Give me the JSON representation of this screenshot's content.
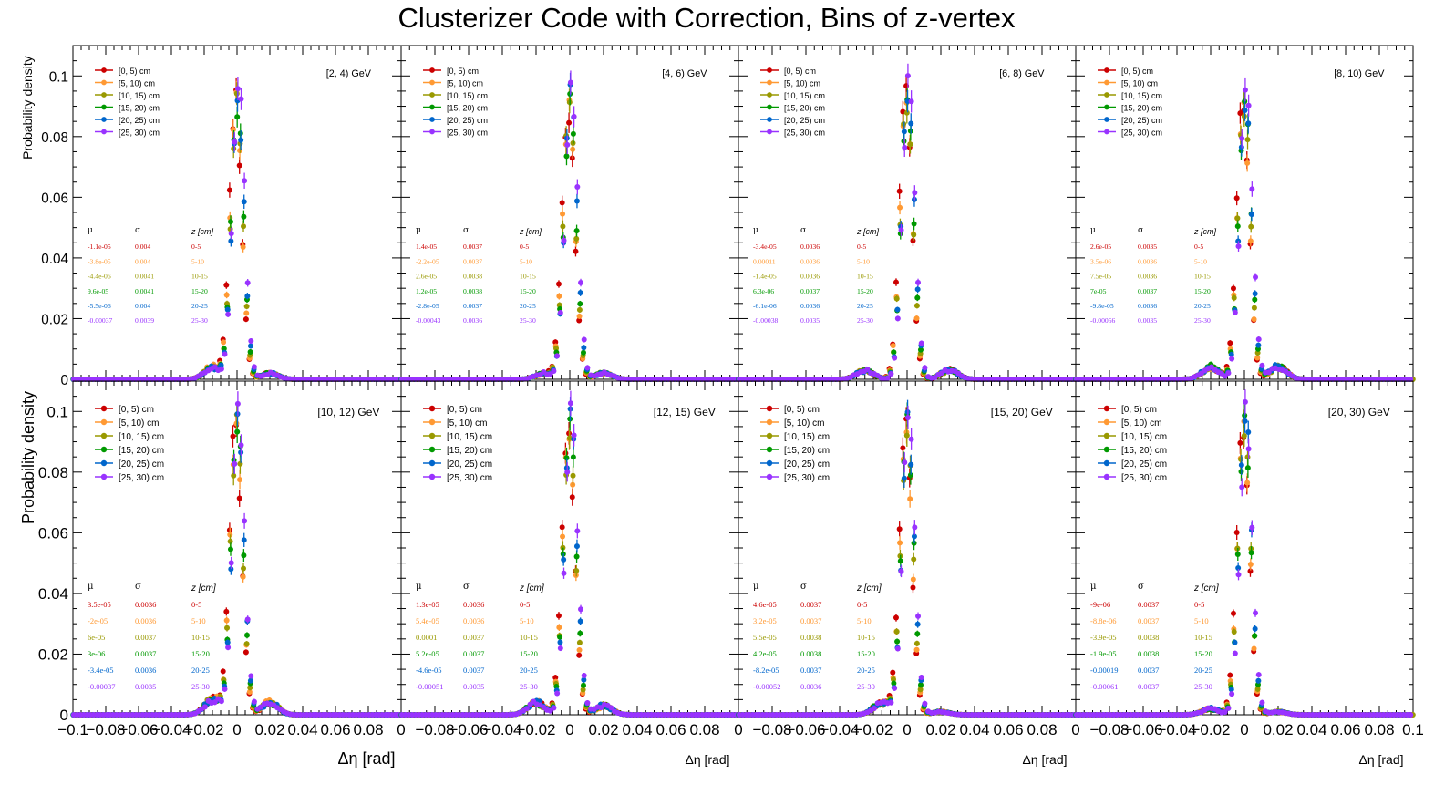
{
  "figure": {
    "title": "Clusterizer Code with Correction, Bins of z-vertex",
    "ylabel": "Probability density",
    "xlabel": "Δη  [rad]"
  },
  "stats_headers": {
    "mu": "μ",
    "sigma": "σ",
    "z": "z [cm]"
  },
  "colors": [
    "#cc0000",
    "#ff9933",
    "#999900",
    "#009900",
    "#0066cc",
    "#9933ff"
  ],
  "legend": [
    "[0, 5) cm",
    "[5, 10) cm",
    "[10, 15) cm",
    "[15, 20) cm",
    "[20, 25) cm",
    "[25, 30) cm"
  ],
  "chart_data": [
    {
      "type": "scatter",
      "energy": "[2, 4) GeV",
      "xlim": [
        -0.1,
        0.1
      ],
      "ylim": [
        0,
        0.11
      ],
      "xticks": [
        "−0.1",
        "−0.08",
        "−0.06",
        "−0.04",
        "−0.02",
        "0",
        "0.02",
        "0.04",
        "0.06",
        "0.08",
        "0.1"
      ],
      "yticks": [
        "0",
        "0.02",
        "0.04",
        "0.06",
        "0.08",
        "0.1"
      ],
      "peak_x": 0.0,
      "peak_y": [
        0.092,
        0.09,
        0.089,
        0.091,
        0.093,
        0.098
      ],
      "side_bumps": [
        [
          -0.015,
          0.004
        ],
        [
          0.02,
          0.002
        ]
      ],
      "stats": [
        {
          "mu": "-1.1e-05",
          "sigma": "0.004",
          "z": "0-5"
        },
        {
          "mu": "-3.8e-05",
          "sigma": "0.004",
          "z": "5-10"
        },
        {
          "mu": "-4.4e-06",
          "sigma": "0.0041",
          "z": "10-15"
        },
        {
          "mu": "9.6e-05",
          "sigma": "0.0041",
          "z": "15-20"
        },
        {
          "mu": "-5.5e-06",
          "sigma": "0.004",
          "z": "20-25"
        },
        {
          "mu": "-0.00037",
          "sigma": "0.0039",
          "z": "25-30"
        }
      ]
    },
    {
      "type": "scatter",
      "energy": "[4, 6) GeV",
      "xlim": [
        -0.1,
        0.1
      ],
      "ylim": [
        0,
        0.11
      ],
      "xticks": [
        "",
        "−0.08",
        "−0.06",
        "−0.04",
        "−0.02",
        "0",
        "0.02",
        "0.04",
        "0.06",
        "0.08",
        ""
      ],
      "yticks": [],
      "peak_x": 0.0,
      "peak_y": [
        0.09,
        0.088,
        0.089,
        0.09,
        0.092,
        0.096
      ],
      "side_bumps": [
        [
          -0.015,
          0.002
        ],
        [
          0.02,
          0.002
        ]
      ],
      "stats": [
        {
          "mu": "1.4e-05",
          "sigma": "0.0037",
          "z": "0-5"
        },
        {
          "mu": "-2.2e-05",
          "sigma": "0.0037",
          "z": "5-10"
        },
        {
          "mu": "2.6e-05",
          "sigma": "0.0038",
          "z": "10-15"
        },
        {
          "mu": "1.2e-05",
          "sigma": "0.0038",
          "z": "15-20"
        },
        {
          "mu": "-2.8e-05",
          "sigma": "0.0037",
          "z": "20-25"
        },
        {
          "mu": "-0.00043",
          "sigma": "0.0036",
          "z": "25-30"
        }
      ]
    },
    {
      "type": "scatter",
      "energy": "[6, 8) GeV",
      "xlim": [
        -0.1,
        0.1
      ],
      "ylim": [
        0,
        0.11
      ],
      "xticks": [
        "",
        "−0.08",
        "−0.06",
        "−0.04",
        "−0.02",
        "0",
        "0.02",
        "0.04",
        "0.06",
        "0.08",
        ""
      ],
      "yticks": [],
      "peak_x": 0.0,
      "peak_y": [
        0.093,
        0.091,
        0.092,
        0.094,
        0.095,
        0.098
      ],
      "side_bumps": [
        [
          -0.025,
          0.003
        ],
        [
          0.025,
          0.003
        ]
      ],
      "stats": [
        {
          "mu": "-3.4e-05",
          "sigma": "0.0036",
          "z": "0-5"
        },
        {
          "mu": "0.00011",
          "sigma": "0.0036",
          "z": "5-10"
        },
        {
          "mu": "-1.4e-05",
          "sigma": "0.0036",
          "z": "10-15"
        },
        {
          "mu": "6.3e-06",
          "sigma": "0.0037",
          "z": "15-20"
        },
        {
          "mu": "-6.1e-06",
          "sigma": "0.0036",
          "z": "20-25"
        },
        {
          "mu": "-0.00038",
          "sigma": "0.0035",
          "z": "25-30"
        }
      ]
    },
    {
      "type": "scatter",
      "energy": "[8, 10) GeV",
      "xlim": [
        -0.1,
        0.1
      ],
      "ylim": [
        0,
        0.11
      ],
      "xticks": [
        "",
        "−0.08",
        "−0.06",
        "−0.04",
        "−0.02",
        "0",
        "0.02",
        "0.04",
        "0.06",
        "0.08",
        ""
      ],
      "yticks": [],
      "peak_x": 0.0,
      "peak_y": [
        0.09,
        0.088,
        0.09,
        0.092,
        0.093,
        0.097
      ],
      "side_bumps": [
        [
          -0.02,
          0.004
        ],
        [
          0.02,
          0.004
        ]
      ],
      "stats": [
        {
          "mu": "2.6e-05",
          "sigma": "0.0035",
          "z": "0-5"
        },
        {
          "mu": "3.5e-06",
          "sigma": "0.0036",
          "z": "5-10"
        },
        {
          "mu": "7.5e-05",
          "sigma": "0.0036",
          "z": "10-15"
        },
        {
          "mu": "7e-05",
          "sigma": "0.0037",
          "z": "15-20"
        },
        {
          "mu": "-9.8e-05",
          "sigma": "0.0036",
          "z": "20-25"
        },
        {
          "mu": "-0.00056",
          "sigma": "0.0035",
          "z": "25-30"
        }
      ]
    },
    {
      "type": "scatter",
      "energy": "[10, 12) GeV",
      "xlim": [
        -0.1,
        0.1
      ],
      "ylim": [
        0,
        0.11
      ],
      "xticks": [
        "−0.1",
        "−0.08",
        "−0.06",
        "−0.04",
        "−0.02",
        "0",
        "0.02",
        "0.04",
        "0.06",
        "0.08",
        "0"
      ],
      "yticks": [
        "0",
        "0.02",
        "0.04",
        "0.06",
        "0.08",
        "0.1"
      ],
      "peak_x": 0.0,
      "peak_y": [
        0.095,
        0.093,
        0.094,
        0.096,
        0.097,
        0.1
      ],
      "side_bumps": [
        [
          -0.015,
          0.005
        ],
        [
          0.02,
          0.004
        ]
      ],
      "stats": [
        {
          "mu": "3.5e-05",
          "sigma": "0.0036",
          "z": "0-5"
        },
        {
          "mu": "-2e-05",
          "sigma": "0.0036",
          "z": "5-10"
        },
        {
          "mu": "6e-05",
          "sigma": "0.0037",
          "z": "10-15"
        },
        {
          "mu": "3e-06",
          "sigma": "0.0037",
          "z": "15-20"
        },
        {
          "mu": "-3.4e-05",
          "sigma": "0.0036",
          "z": "20-25"
        },
        {
          "mu": "-0.00037",
          "sigma": "0.0035",
          "z": "25-30"
        }
      ]
    },
    {
      "type": "scatter",
      "energy": "[12, 15) GeV",
      "xlim": [
        -0.1,
        0.1
      ],
      "ylim": [
        0,
        0.11
      ],
      "xticks": [
        "",
        "−0.08",
        "−0.06",
        "−0.04",
        "−0.02",
        "0",
        "0.02",
        "0.04",
        "0.06",
        "0.08",
        "0"
      ],
      "yticks": [],
      "peak_x": 0.0,
      "peak_y": [
        0.094,
        0.092,
        0.093,
        0.095,
        0.096,
        0.1
      ],
      "side_bumps": [
        [
          -0.02,
          0.004
        ],
        [
          0.02,
          0.003
        ]
      ],
      "stats": [
        {
          "mu": "1.3e-05",
          "sigma": "0.0036",
          "z": "0-5"
        },
        {
          "mu": "5.4e-05",
          "sigma": "0.0036",
          "z": "5-10"
        },
        {
          "mu": "0.0001",
          "sigma": "0.0037",
          "z": "10-15"
        },
        {
          "mu": "5.2e-05",
          "sigma": "0.0037",
          "z": "15-20"
        },
        {
          "mu": "-4.6e-05",
          "sigma": "0.0037",
          "z": "20-25"
        },
        {
          "mu": "-0.00051",
          "sigma": "0.0035",
          "z": "25-30"
        }
      ]
    },
    {
      "type": "scatter",
      "energy": "[15, 20) GeV",
      "xlim": [
        -0.1,
        0.1
      ],
      "ylim": [
        0,
        0.11
      ],
      "xticks": [
        "",
        "−0.08",
        "−0.06",
        "−0.04",
        "−0.02",
        "0",
        "0.02",
        "0.04",
        "0.06",
        "0.08",
        "0"
      ],
      "yticks": [],
      "peak_x": 0.0,
      "peak_y": [
        0.093,
        0.091,
        0.093,
        0.095,
        0.096,
        0.099
      ],
      "side_bumps": [
        [
          -0.015,
          0.004
        ],
        [
          0.02,
          0.001
        ]
      ],
      "stats": [
        {
          "mu": "4.6e-05",
          "sigma": "0.0037",
          "z": "0-5"
        },
        {
          "mu": "3.2e-05",
          "sigma": "0.0037",
          "z": "5-10"
        },
        {
          "mu": "5.5e-05",
          "sigma": "0.0038",
          "z": "10-15"
        },
        {
          "mu": "4.2e-05",
          "sigma": "0.0038",
          "z": "15-20"
        },
        {
          "mu": "-8.2e-05",
          "sigma": "0.0037",
          "z": "20-25"
        },
        {
          "mu": "-0.00052",
          "sigma": "0.0036",
          "z": "25-30"
        }
      ]
    },
    {
      "type": "scatter",
      "energy": "[20, 30) GeV",
      "xlim": [
        -0.1,
        0.1
      ],
      "ylim": [
        0,
        0.11
      ],
      "xticks": [
        "",
        "−0.08",
        "−0.06",
        "−0.04",
        "−0.02",
        "0",
        "0.02",
        "0.04",
        "0.06",
        "0.08",
        "0.1"
      ],
      "yticks": [],
      "peak_x": 0.0,
      "peak_y": [
        0.096,
        0.095,
        0.096,
        0.097,
        0.098,
        0.1
      ],
      "side_bumps": [
        [
          -0.02,
          0.002
        ],
        [
          0.02,
          0.001
        ]
      ],
      "stats": [
        {
          "mu": "-9e-06",
          "sigma": "0.0037",
          "z": "0-5"
        },
        {
          "mu": "-8.8e-06",
          "sigma": "0.0037",
          "z": "5-10"
        },
        {
          "mu": "-3.9e-05",
          "sigma": "0.0038",
          "z": "10-15"
        },
        {
          "mu": "-1.9e-05",
          "sigma": "0.0038",
          "z": "15-20"
        },
        {
          "mu": "-0.00019",
          "sigma": "0.0037",
          "z": "20-25"
        },
        {
          "mu": "-0.00061",
          "sigma": "0.0037",
          "z": "25-30"
        }
      ]
    }
  ]
}
